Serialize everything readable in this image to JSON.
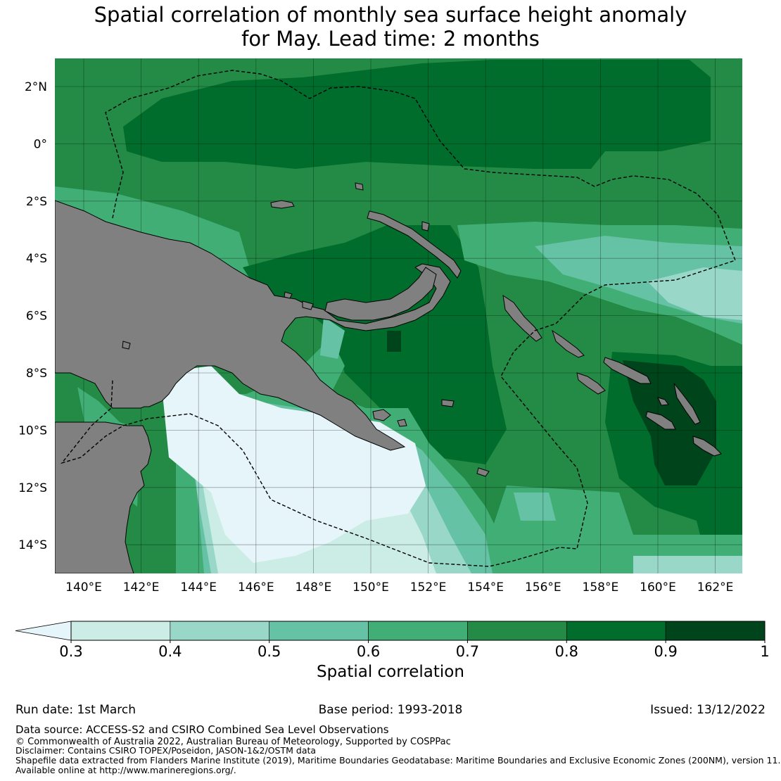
{
  "title": {
    "line1": "Spatial correlation of monthly sea surface height anomaly",
    "line2": "for May. Lead time: 2 months"
  },
  "map": {
    "lon_ticks": [
      "140°E",
      "142°E",
      "144°E",
      "146°E",
      "148°E",
      "150°E",
      "152°E",
      "154°E",
      "156°E",
      "158°E",
      "160°E",
      "162°E"
    ],
    "lat_ticks": [
      "2°N",
      "0°",
      "2°S",
      "4°S",
      "6°S",
      "8°S",
      "10°S",
      "12°S",
      "14°S"
    ],
    "land_color": "#808080",
    "eez_boundary_style": "dashed"
  },
  "colorbar": {
    "ticks": [
      "0.3",
      "0.4",
      "0.5",
      "0.6",
      "0.7",
      "0.8",
      "0.9",
      "1"
    ],
    "colors": [
      "#e5f5f9",
      "#ccece6",
      "#99d8c9",
      "#66c2a4",
      "#41ae76",
      "#238b45",
      "#006d2c",
      "#00441b"
    ],
    "extend": "min",
    "label": "Spatial correlation"
  },
  "footer": {
    "run_date": "Run date: 1st March",
    "base_period": "Base period: 1993-2018",
    "issued": "Issued: 13/12/2022",
    "data_source": "Data source: ACCESS-S2 and CSIRO Combined Sea Level Observations",
    "copyright": "© Commonwealth of Australia 2022, Australian Bureau of Meteorology, Supported by COSPPac",
    "disclaimer": "Disclaimer: Contains CSIRO TOPEX/Poseidon, JASON-1&2/OSTM data",
    "shapefile": "Shapefile data extracted from Flanders Marine Institute (2019), Maritime Boundaries Geodatabase: Maritime Boundaries and Exclusive Economic Zones (200NM), version 11.",
    "available": "Available online at http://www.marineregions.org/."
  }
}
